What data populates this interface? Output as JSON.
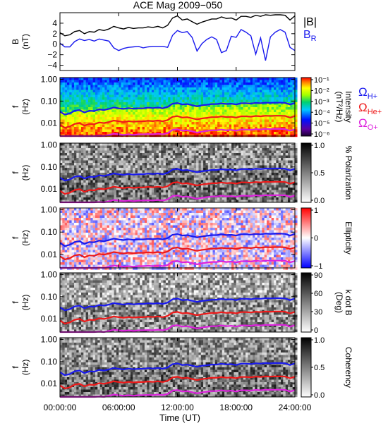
{
  "figure": {
    "title": "ACE Mag 2009−050"
  },
  "chart_data": [
    {
      "id": "field",
      "type": "line",
      "ylabel": "B",
      "yunit": "(nT)",
      "ylim": [
        -5,
        6
      ],
      "yticks": [
        "4",
        "2",
        "0",
        "−2",
        "−4"
      ],
      "ytick_values": [
        4,
        2,
        0,
        -2,
        -4
      ],
      "xlim_hours": [
        0,
        24
      ],
      "series": [
        {
          "name": "|B|",
          "color": "#000000",
          "x": [
            0,
            0.5,
            1,
            1.5,
            2,
            2.5,
            3,
            3.5,
            4,
            4.5,
            5,
            5.5,
            6,
            6.5,
            7,
            7.5,
            8,
            8.5,
            9,
            9.5,
            10,
            10.5,
            11,
            11.5,
            12,
            12.5,
            13,
            13.5,
            14,
            14.5,
            15,
            15.5,
            16,
            16.5,
            17,
            17.5,
            18,
            18.5,
            19,
            19.5,
            20,
            20.5,
            21,
            21.5,
            22,
            22.5,
            23,
            23.5,
            24
          ],
          "y": [
            2.2,
            1.6,
            1.8,
            2.4,
            2.6,
            2.0,
            2.4,
            2.3,
            2.8,
            2.6,
            2.9,
            3.4,
            3.1,
            2.9,
            3.2,
            3.0,
            3.1,
            3.1,
            3.3,
            3.2,
            3.4,
            3.1,
            3.6,
            5.0,
            5.4,
            4.6,
            4.8,
            4.3,
            3.8,
            4.2,
            4.5,
            4.8,
            4.8,
            5.2,
            4.9,
            5.0,
            4.6,
            5.3,
            5.3,
            5.1,
            5.5,
            5.3,
            5.6,
            5.5,
            5.6,
            5.6,
            5.5,
            4.6,
            5.4
          ]
        },
        {
          "name": "B",
          "subscript": "R",
          "color": "#1a1aee",
          "x": [
            0,
            0.5,
            1,
            1.5,
            2,
            2.5,
            3,
            3.5,
            4,
            4.5,
            5,
            5.5,
            6,
            6.5,
            7,
            7.5,
            8,
            8.5,
            9,
            9.5,
            10,
            10.5,
            11,
            11.5,
            12,
            12.5,
            13,
            13.5,
            14,
            14.5,
            15,
            15.5,
            16,
            16.5,
            17,
            17.5,
            18,
            18.5,
            19,
            19.5,
            20,
            20.5,
            21,
            21.5,
            22,
            22.5,
            23,
            23.5,
            24
          ],
          "y": [
            0.2,
            -0.5,
            -0.5,
            0.5,
            1.0,
            0.7,
            0.9,
            0.6,
            1.0,
            0.8,
            0.6,
            -0.7,
            -1.2,
            -0.8,
            -0.6,
            -0.5,
            -0.4,
            -0.7,
            -0.5,
            -0.4,
            -0.4,
            -0.4,
            -0.6,
            1.7,
            2.6,
            2.2,
            2.4,
            1.3,
            -1.3,
            0.1,
            0.9,
            1.4,
            0.9,
            -1.6,
            -1.2,
            1.5,
            1.3,
            2.8,
            2.3,
            1.6,
            -1.9,
            1.2,
            -3.1,
            1.4,
            2.3,
            2.8,
            2.3,
            -0.6,
            -1.2
          ]
        }
      ]
    },
    {
      "id": "intensity",
      "type": "heatmap",
      "ylabel": "f",
      "yunit": "(Hz)",
      "colorbar": {
        "label": "Intensity",
        "unit": "(nT²/Hz)",
        "ticks": [
          "10⁻¹",
          "10⁻²",
          "10⁻³",
          "10⁻⁴",
          "10⁻⁵",
          "10⁻⁶"
        ],
        "scale": "rainbow"
      },
      "legend": [
        {
          "label": "Ω",
          "subscript": "H+",
          "color": "#1a1aee"
        },
        {
          "label": "Ω",
          "subscript": "He+",
          "color": "#ee1a1a"
        },
        {
          "label": "Ω",
          "subscript": "O+",
          "color": "#dd22dd"
        }
      ]
    },
    {
      "id": "polarization",
      "type": "heatmap",
      "ylabel": "f",
      "yunit": "(Hz)",
      "colorbar": {
        "label": "% Polarization",
        "ticks": [
          "1.0",
          "0.5",
          "0.0"
        ],
        "scale": "gray"
      }
    },
    {
      "id": "ellipticity",
      "type": "heatmap",
      "ylabel": "f",
      "yunit": "(Hz)",
      "colorbar": {
        "label": "Ellipticity",
        "ticks": [
          "1",
          "0",
          "−1"
        ],
        "scale": "redblue"
      }
    },
    {
      "id": "kdotb",
      "type": "heatmap",
      "ylabel": "f",
      "yunit": "(Hz)",
      "colorbar": {
        "label": "k dot B",
        "unit": "(Deg)",
        "ticks": [
          "90",
          "60",
          "30",
          "0"
        ],
        "scale": "gray"
      }
    },
    {
      "id": "coherency",
      "type": "heatmap",
      "ylabel": "f",
      "yunit": "(Hz)",
      "colorbar": {
        "label": "Coherency",
        "ticks": [
          "1.0",
          "0.5",
          "0.0"
        ],
        "scale": "gray"
      }
    }
  ],
  "spectral": {
    "ylim_hz": [
      0.0025,
      1.2
    ],
    "yticks": [
      "1.00",
      "0.10",
      "0.01"
    ],
    "ytick_values": [
      1.0,
      0.1,
      0.01
    ],
    "cyclotron_hz": {
      "x": [
        0,
        0.5,
        1,
        1.5,
        2,
        2.5,
        3,
        3.5,
        4,
        4.5,
        5,
        5.5,
        6,
        6.5,
        7,
        7.5,
        8,
        8.5,
        9,
        9.5,
        10,
        10.5,
        11,
        11.5,
        12,
        12.5,
        13,
        13.5,
        14,
        14.5,
        15,
        15.5,
        16,
        16.5,
        17,
        17.5,
        18,
        18.5,
        19,
        19.5,
        20,
        20.5,
        21,
        21.5,
        22,
        22.5,
        23,
        23.5,
        24
      ],
      "H+": [
        0.033,
        0.024,
        0.027,
        0.036,
        0.039,
        0.03,
        0.036,
        0.035,
        0.042,
        0.039,
        0.044,
        0.051,
        0.047,
        0.044,
        0.048,
        0.045,
        0.047,
        0.047,
        0.05,
        0.048,
        0.051,
        0.047,
        0.054,
        0.076,
        0.082,
        0.07,
        0.073,
        0.065,
        0.058,
        0.064,
        0.068,
        0.073,
        0.073,
        0.079,
        0.074,
        0.076,
        0.07,
        0.08,
        0.08,
        0.077,
        0.083,
        0.08,
        0.085,
        0.083,
        0.085,
        0.085,
        0.083,
        0.07,
        0.082
      ],
      "He+": [
        0.0083,
        0.006,
        0.0068,
        0.009,
        0.0098,
        0.0075,
        0.009,
        0.0087,
        0.0105,
        0.0098,
        0.011,
        0.0128,
        0.0118,
        0.011,
        0.012,
        0.0113,
        0.0118,
        0.0118,
        0.0125,
        0.012,
        0.0128,
        0.0118,
        0.0135,
        0.019,
        0.0205,
        0.0175,
        0.0183,
        0.0163,
        0.0145,
        0.016,
        0.017,
        0.0183,
        0.0183,
        0.0198,
        0.0185,
        0.019,
        0.0175,
        0.02,
        0.02,
        0.0193,
        0.0208,
        0.02,
        0.0213,
        0.0208,
        0.0213,
        0.0213,
        0.0208,
        0.0175,
        0.0205
      ],
      "O+": [
        0.0021,
        0.0015,
        0.0017,
        0.0023,
        0.0025,
        0.0019,
        0.0023,
        0.0022,
        0.0026,
        0.0025,
        0.0028,
        0.0032,
        0.003,
        0.0028,
        0.003,
        0.0028,
        0.003,
        0.003,
        0.0031,
        0.003,
        0.0032,
        0.003,
        0.0034,
        0.0048,
        0.0051,
        0.0044,
        0.0046,
        0.0041,
        0.0036,
        0.004,
        0.0043,
        0.0046,
        0.0046,
        0.005,
        0.0046,
        0.0048,
        0.0044,
        0.005,
        0.005,
        0.0048,
        0.0052,
        0.005,
        0.0053,
        0.0052,
        0.0053,
        0.0053,
        0.0052,
        0.0044,
        0.0051
      ]
    }
  },
  "xaxis": {
    "label": "Time (UT)",
    "xlim_hours": [
      0,
      24
    ],
    "tick_hours": [
      0,
      6,
      12,
      18,
      24
    ],
    "ticks": [
      "00:00:00",
      "06:00:00",
      "12:00:00",
      "18:00:00",
      "24:00:00"
    ]
  }
}
